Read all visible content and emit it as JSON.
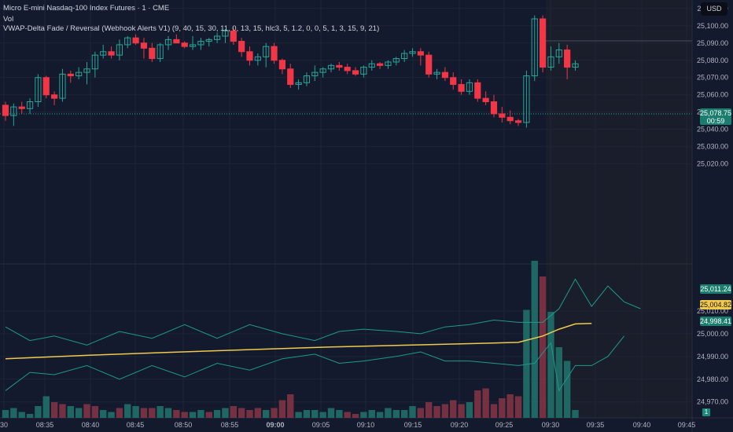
{
  "header": {
    "title": "Micro E-mini Nasdaq-100 Index Futures · 1 · CME",
    "vol_label": "Vol",
    "indicator": "VWAP-Delta Fade / Reversal (Webhook Alerts V1) (9, 40, 15, 30, 11, 0, 13, 15, hlc3, 5, 1.2, 0, 0, 5, 1, 3, 15, 9, 21)"
  },
  "currency_button": "USD",
  "price_tag": {
    "price": "25,078.75",
    "countdown": "00:59"
  },
  "indicator_tags": {
    "upper_band": "25,011.24",
    "vwap": "25,004.82",
    "lower_band": "24,998.41"
  },
  "volume_tag": "1",
  "colors": {
    "background": "#131a2e",
    "up": "#26a69a",
    "down": "#f23645",
    "vwap": "#f2c94c",
    "band": "#1c9a8c",
    "session_shade": "#1a1e2a"
  },
  "chart_data": {
    "type": "candlestick",
    "symbol": "MNQ1!",
    "interval": "1",
    "x_ticks": [
      "30",
      "08:35",
      "08:40",
      "08:45",
      "08:50",
      "08:55",
      "09:00",
      "09:05",
      "09:10",
      "09:15",
      "09:20",
      "09:25",
      "09:30",
      "09:35",
      "09:40",
      "09:45"
    ],
    "y_ticks": [
      25110,
      25100,
      25090,
      25080,
      25070,
      25060,
      25050,
      25040,
      25030,
      25020,
      25010,
      25000,
      24990,
      24980,
      24970
    ],
    "ylim": [
      24963,
      25114
    ],
    "grid": true,
    "candles": [
      [
        25054,
        25056,
        25045,
        25048
      ],
      [
        25048,
        25055,
        25042,
        25053
      ],
      [
        25053,
        25056,
        25049,
        25052
      ],
      [
        25052,
        25058,
        25049,
        25056
      ],
      [
        25056,
        25072,
        25053,
        25070
      ],
      [
        25070,
        25071,
        25058,
        25060
      ],
      [
        25060,
        25062,
        25054,
        25058
      ],
      [
        25058,
        25075,
        25056,
        25072
      ],
      [
        25072,
        25074,
        25067,
        25071
      ],
      [
        25071,
        25076,
        25069,
        25073
      ],
      [
        25073,
        25079,
        25066,
        25075
      ],
      [
        25075,
        25085,
        25070,
        25083
      ],
      [
        25083,
        25089,
        25081,
        25085
      ],
      [
        25085,
        25088,
        25081,
        25083
      ],
      [
        25083,
        25092,
        25080,
        25089
      ],
      [
        25089,
        25094,
        25087,
        25093
      ],
      [
        25093,
        25095,
        25089,
        25090
      ],
      [
        25090,
        25093,
        25081,
        25087
      ],
      [
        25087,
        25090,
        25079,
        25081
      ],
      [
        25081,
        25090,
        25079,
        25089
      ],
      [
        25089,
        25094,
        25086,
        25092
      ],
      [
        25092,
        25095,
        25090,
        25090
      ],
      [
        25090,
        25091,
        25087,
        25088
      ],
      [
        25088,
        25094,
        25086,
        25089
      ],
      [
        25089,
        25093,
        25086,
        25091
      ],
      [
        25091,
        25093,
        25088,
        25092
      ],
      [
        25092,
        25096,
        25090,
        25094
      ],
      [
        25094,
        25098,
        25090,
        25097
      ],
      [
        25097,
        25099,
        25089,
        25091
      ],
      [
        25091,
        25093,
        25082,
        25085
      ],
      [
        25085,
        25088,
        25077,
        25080
      ],
      [
        25080,
        25084,
        25077,
        25082
      ],
      [
        25082,
        25090,
        25076,
        25088
      ],
      [
        25088,
        25090,
        25078,
        25080
      ],
      [
        25080,
        25081,
        25072,
        25075
      ],
      [
        25075,
        25078,
        25064,
        25066
      ],
      [
        25066,
        25069,
        25063,
        25067
      ],
      [
        25067,
        25073,
        25065,
        25071
      ],
      [
        25071,
        25077,
        25068,
        25073
      ],
      [
        25073,
        25076,
        25070,
        25075
      ],
      [
        25075,
        25078,
        25073,
        25077
      ],
      [
        25077,
        25079,
        25074,
        25076
      ],
      [
        25076,
        25078,
        25072,
        25074
      ],
      [
        25074,
        25076,
        25071,
        25072
      ],
      [
        25072,
        25077,
        25070,
        25076
      ],
      [
        25076,
        25080,
        25074,
        25078
      ],
      [
        25078,
        25079,
        25075,
        25077
      ],
      [
        25077,
        25080,
        25075,
        25079
      ],
      [
        25079,
        25082,
        25077,
        25081
      ],
      [
        25081,
        25086,
        25079,
        25084
      ],
      [
        25084,
        25087,
        25082,
        25085
      ],
      [
        25085,
        25087,
        25077,
        25083
      ],
      [
        25083,
        25085,
        25070,
        25072
      ],
      [
        25072,
        25075,
        25069,
        25073
      ],
      [
        25073,
        25076,
        25068,
        25070
      ],
      [
        25070,
        25073,
        25063,
        25066
      ],
      [
        25066,
        25069,
        25060,
        25062
      ],
      [
        25062,
        25069,
        25060,
        25067
      ],
      [
        25067,
        25069,
        25056,
        25058
      ],
      [
        25058,
        25062,
        25054,
        25056
      ],
      [
        25056,
        25060,
        25047,
        25049
      ],
      [
        25049,
        25053,
        25044,
        25047
      ],
      [
        25047,
        25051,
        25043,
        25045
      ],
      [
        25045,
        25046,
        25042,
        25044
      ],
      [
        25044,
        25074,
        25041,
        25071
      ],
      [
        25071,
        25106,
        25068,
        25104
      ],
      [
        25104,
        25106,
        25073,
        25076
      ],
      [
        25076,
        25088,
        25074,
        25082
      ],
      [
        25082,
        25090,
        25078,
        25086
      ],
      [
        25086,
        25089,
        25069,
        25076
      ],
      [
        25076,
        25080,
        25074,
        25078
      ]
    ],
    "volume": [
      [
        4,
        1
      ],
      [
        5,
        1
      ],
      [
        3,
        1
      ],
      [
        2,
        1
      ],
      [
        6,
        1
      ],
      [
        11,
        1
      ],
      [
        8,
        0
      ],
      [
        7,
        0
      ],
      [
        6,
        1
      ],
      [
        5,
        1
      ],
      [
        7,
        0
      ],
      [
        6,
        0
      ],
      [
        4,
        1
      ],
      [
        3,
        1
      ],
      [
        5,
        0
      ],
      [
        7,
        1
      ],
      [
        6,
        1
      ],
      [
        5,
        0
      ],
      [
        5,
        0
      ],
      [
        6,
        1
      ],
      [
        5,
        1
      ],
      [
        4,
        0
      ],
      [
        3,
        0
      ],
      [
        3,
        1
      ],
      [
        4,
        1
      ],
      [
        3,
        0
      ],
      [
        4,
        1
      ],
      [
        5,
        1
      ],
      [
        6,
        0
      ],
      [
        5,
        0
      ],
      [
        4,
        0
      ],
      [
        5,
        0
      ],
      [
        4,
        1
      ],
      [
        5,
        0
      ],
      [
        9,
        0
      ],
      [
        12,
        0
      ],
      [
        3,
        1
      ],
      [
        4,
        1
      ],
      [
        4,
        1
      ],
      [
        3,
        1
      ],
      [
        5,
        1
      ],
      [
        4,
        1
      ],
      [
        3,
        0
      ],
      [
        2,
        0
      ],
      [
        3,
        1
      ],
      [
        4,
        1
      ],
      [
        3,
        1
      ],
      [
        5,
        1
      ],
      [
        4,
        1
      ],
      [
        4,
        1
      ],
      [
        6,
        1
      ],
      [
        5,
        0
      ],
      [
        8,
        0
      ],
      [
        6,
        0
      ],
      [
        7,
        0
      ],
      [
        9,
        0
      ],
      [
        7,
        0
      ],
      [
        8,
        1
      ],
      [
        14,
        0
      ],
      [
        15,
        0
      ],
      [
        7,
        0
      ],
      [
        10,
        0
      ],
      [
        12,
        0
      ],
      [
        11,
        0
      ],
      [
        55,
        1
      ],
      [
        80,
        1
      ],
      [
        72,
        0
      ],
      [
        54,
        1
      ],
      [
        36,
        1
      ],
      [
        29,
        1
      ],
      [
        4,
        1
      ]
    ],
    "volume_max": 80,
    "vwap": {
      "name": "VWAP",
      "values": [
        [
          0,
          24989
        ],
        [
          10,
          24990.5
        ],
        [
          20,
          24991.8
        ],
        [
          30,
          24993
        ],
        [
          40,
          24994.2
        ],
        [
          50,
          24995
        ],
        [
          58,
          24995.7
        ],
        [
          63,
          24996.2
        ],
        [
          66,
          24999
        ],
        [
          68,
          25002
        ],
        [
          70,
          25004.3
        ],
        [
          72,
          25004.5
        ]
      ]
    },
    "upper_band": {
      "values": [
        [
          0,
          25003
        ],
        [
          3,
          24997
        ],
        [
          6,
          24999
        ],
        [
          10,
          24995
        ],
        [
          14,
          25001
        ],
        [
          18,
          24998
        ],
        [
          22,
          25004
        ],
        [
          26,
          24998
        ],
        [
          30,
          25004
        ],
        [
          34,
          25000
        ],
        [
          38,
          24997
        ],
        [
          41,
          25001
        ],
        [
          44,
          25002
        ],
        [
          48,
          25001
        ],
        [
          51,
          25000
        ],
        [
          54,
          25003
        ],
        [
          57,
          25004
        ],
        [
          60,
          25006
        ],
        [
          63,
          25005
        ],
        [
          66,
          25005
        ],
        [
          68,
          25011
        ],
        [
          70,
          25024
        ],
        [
          72,
          25012
        ],
        [
          74,
          25021
        ],
        [
          76,
          25014
        ],
        [
          78,
          25011
        ]
      ]
    },
    "lower_band": {
      "values": [
        [
          0,
          24975
        ],
        [
          3,
          24983
        ],
        [
          6,
          24982
        ],
        [
          10,
          24986
        ],
        [
          14,
          24980
        ],
        [
          18,
          24986
        ],
        [
          22,
          24981
        ],
        [
          26,
          24987
        ],
        [
          30,
          24984
        ],
        [
          34,
          24989
        ],
        [
          38,
          24991
        ],
        [
          41,
          24987
        ],
        [
          44,
          24988
        ],
        [
          48,
          24990
        ],
        [
          51,
          24992
        ],
        [
          54,
          24988
        ],
        [
          57,
          24988
        ],
        [
          60,
          24987
        ],
        [
          63,
          24986
        ],
        [
          65,
          24987
        ],
        [
          67,
          24996
        ],
        [
          68,
          24975
        ],
        [
          70,
          24986
        ],
        [
          72,
          24986
        ],
        [
          74,
          24990
        ],
        [
          76,
          24999
        ]
      ]
    },
    "indicator_ylim": [
      24963,
      25030
    ]
  }
}
